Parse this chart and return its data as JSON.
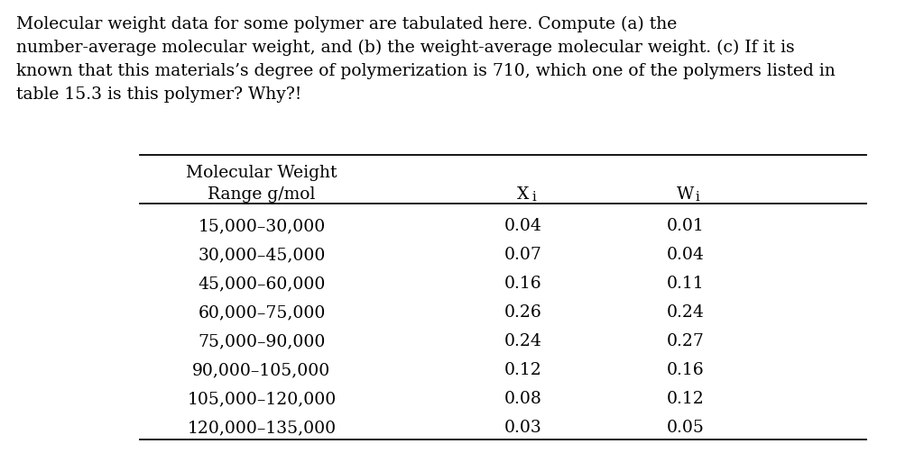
{
  "paragraph_lines": [
    "Molecular weight data for some polymer are tabulated here. Compute (a) the",
    "number-average molecular weight, and (b) the weight-average molecular weight. (c) If it is",
    "known that this materials’s degree of polymerization is 710, which one of the polymers listed in",
    "table 15.3 is this polymer? Why?!"
  ],
  "rows": [
    [
      "15,000–30,000",
      "0.04",
      "0.01"
    ],
    [
      "30,000–45,000",
      "0.07",
      "0.04"
    ],
    [
      "45,000–60,000",
      "0.16",
      "0.11"
    ],
    [
      "60,000–75,000",
      "0.26",
      "0.24"
    ],
    [
      "75,000–90,000",
      "0.24",
      "0.27"
    ],
    [
      "90,000–105,000",
      "0.12",
      "0.16"
    ],
    [
      "105,000–120,000",
      "0.08",
      "0.12"
    ],
    [
      "120,000–135,000",
      "0.03",
      "0.05"
    ]
  ],
  "bg_color": "#ffffff",
  "text_color": "#000000",
  "font_size_para": 13.5,
  "font_size_table": 13.5
}
